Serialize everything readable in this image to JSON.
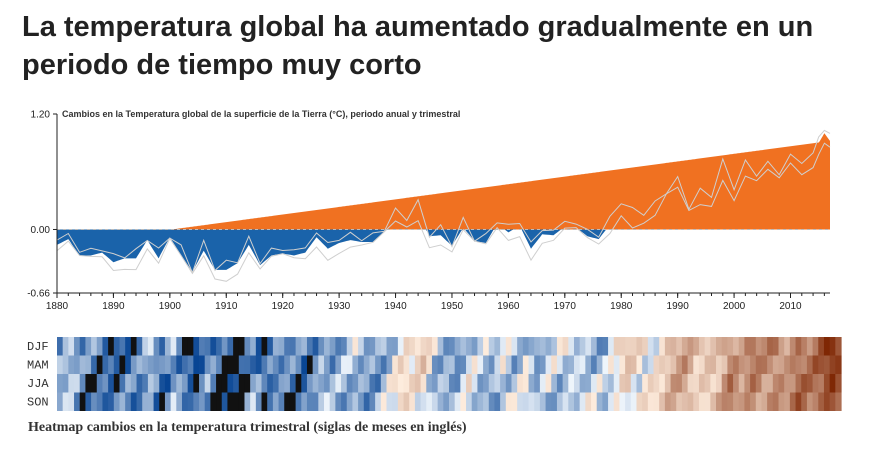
{
  "headline": "La temperatura global ha aumentado gradualmente en un periodo de tiempo muy corto",
  "colors": {
    "warm": "#f07121",
    "cool": "#1a63aa",
    "actual_line": "#cfcfcf",
    "zero_line": "#bbbbbb"
  },
  "chart_data": [
    {
      "type": "area",
      "title": "Cambios en la Temperatura global de la superficie de la Tierra (°C), periodo anual y trimestral",
      "xlabel": "",
      "ylabel": "",
      "xlim": [
        1880,
        2017
      ],
      "ylim": [
        -0.66,
        1.2
      ],
      "x_ticks": [
        "1880",
        "1890",
        "1900",
        "1910",
        "1920",
        "1930",
        "1940",
        "1950",
        "1960",
        "1970",
        "1980",
        "1990",
        "2000",
        "2010"
      ],
      "y_ticks": [
        "1.20",
        "0.00",
        "-0.66"
      ],
      "series": [
        {
          "x": [
            1880,
            1882,
            1884,
            1886,
            1888,
            1890,
            1892,
            1894,
            1896,
            1898,
            1900,
            1902,
            1904,
            1906,
            1908,
            1910,
            1912,
            1914,
            1916,
            1918,
            1920,
            1922,
            1924,
            1926,
            1928,
            1930,
            1932,
            1934,
            1936,
            1938,
            1940,
            1942,
            1944,
            1946,
            1948,
            1950,
            1952,
            1954,
            1956,
            1958,
            1960,
            1962,
            1964,
            1966,
            1968,
            1970,
            1972,
            1974,
            1976,
            1978,
            1980,
            1982,
            1984,
            1986,
            1988,
            1990,
            1992,
            1994,
            1996,
            1998,
            2000,
            2002,
            2004,
            2006,
            2008,
            2010,
            2012,
            2014,
            2015,
            2016,
            2017
          ],
          "values": [
            -0.16,
            -0.1,
            -0.27,
            -0.27,
            -0.24,
            -0.34,
            -0.3,
            -0.3,
            -0.11,
            -0.3,
            -0.08,
            -0.27,
            -0.44,
            -0.22,
            -0.42,
            -0.42,
            -0.35,
            -0.16,
            -0.37,
            -0.27,
            -0.25,
            -0.27,
            -0.24,
            -0.08,
            -0.2,
            -0.14,
            -0.11,
            -0.13,
            -0.13,
            -0.02,
            0.12,
            0.1,
            0.2,
            -0.07,
            -0.06,
            -0.17,
            0.02,
            -0.12,
            -0.14,
            0.06,
            -0.03,
            0.04,
            -0.2,
            -0.05,
            -0.06,
            0.03,
            0.02,
            -0.07,
            -0.1,
            0.05,
            0.26,
            0.13,
            0.15,
            0.19,
            0.38,
            0.44,
            0.22,
            0.32,
            0.34,
            0.63,
            0.41,
            0.63,
            0.54,
            0.63,
            0.54,
            0.72,
            0.64,
            0.75,
            0.9,
            1.0,
            0.92
          ]
        }
      ]
    },
    {
      "type": "heatmap",
      "title": "Heatmap cambios en la temperatura trimestral (siglas de meses en inglés)",
      "rows": [
        "DJF",
        "MAM",
        "JJA",
        "SON"
      ],
      "x_range": [
        1880,
        2017
      ]
    }
  ]
}
